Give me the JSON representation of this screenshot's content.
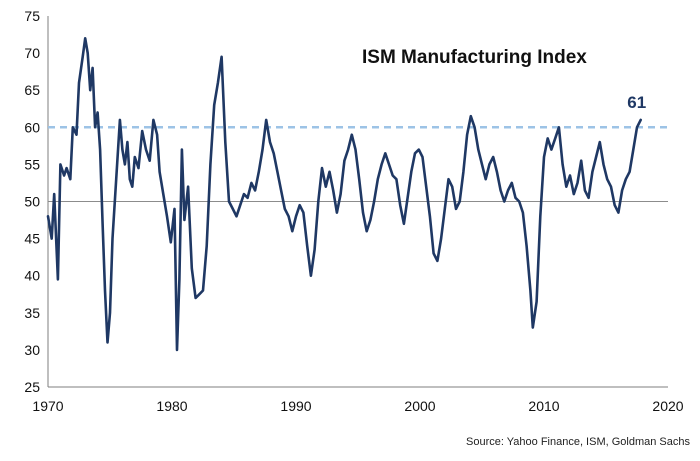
{
  "chart_data": {
    "type": "line",
    "title": "ISM Manufacturing Index",
    "source": "Source: Yahoo Finance, ISM, Goldman Sachs",
    "end_label": "61",
    "xlim": [
      1970,
      2020
    ],
    "ylim": [
      25,
      75
    ],
    "x_ticks": [
      1970,
      1980,
      1990,
      2000,
      2010,
      2020
    ],
    "y_ticks": [
      25,
      30,
      35,
      40,
      45,
      50,
      55,
      60,
      65,
      70,
      75
    ],
    "reference_lines": [
      {
        "y": 60,
        "style": "dashed",
        "color": "#9dc3e6"
      },
      {
        "y": 50,
        "style": "solid",
        "color": "#8c8c8c"
      }
    ],
    "line_color": "#1f3864",
    "grid": false,
    "series": [
      {
        "x": [
          1970.0,
          1970.3,
          1970.5,
          1970.8,
          1971.0,
          1971.3,
          1971.5,
          1971.8,
          1972.0,
          1972.3,
          1972.5,
          1972.8,
          1973.0,
          1973.2,
          1973.4,
          1973.6,
          1973.8,
          1974.0,
          1974.2,
          1974.4,
          1974.6,
          1974.8,
          1975.0,
          1975.2,
          1975.5,
          1975.8,
          1976.0,
          1976.2,
          1976.4,
          1976.6,
          1976.8,
          1977.0,
          1977.3,
          1977.6,
          1977.9,
          1978.2,
          1978.5,
          1978.8,
          1979.0,
          1979.3,
          1979.6,
          1979.9,
          1980.2,
          1980.4,
          1980.6,
          1980.8,
          1981.0,
          1981.3,
          1981.6,
          1981.9,
          1982.2,
          1982.5,
          1982.8,
          1983.1,
          1983.4,
          1983.7,
          1984.0,
          1984.3,
          1984.6,
          1984.9,
          1985.2,
          1985.5,
          1985.8,
          1986.1,
          1986.4,
          1986.7,
          1987.0,
          1987.3,
          1987.6,
          1987.9,
          1988.2,
          1988.5,
          1988.8,
          1989.1,
          1989.4,
          1989.7,
          1990.0,
          1990.3,
          1990.6,
          1990.9,
          1991.2,
          1991.5,
          1991.8,
          1992.1,
          1992.4,
          1992.7,
          1993.0,
          1993.3,
          1993.6,
          1993.9,
          1994.2,
          1994.5,
          1994.8,
          1995.1,
          1995.4,
          1995.7,
          1996.0,
          1996.3,
          1996.6,
          1996.9,
          1997.2,
          1997.5,
          1997.8,
          1998.1,
          1998.4,
          1998.7,
          1999.0,
          1999.3,
          1999.6,
          1999.9,
          2000.2,
          2000.5,
          2000.8,
          2001.1,
          2001.4,
          2001.7,
          2002.0,
          2002.3,
          2002.6,
          2002.9,
          2003.2,
          2003.5,
          2003.8,
          2004.1,
          2004.4,
          2004.7,
          2005.0,
          2005.3,
          2005.6,
          2005.9,
          2006.2,
          2006.5,
          2006.8,
          2007.1,
          2007.4,
          2007.7,
          2008.0,
          2008.3,
          2008.6,
          2008.9,
          2009.1,
          2009.4,
          2009.7,
          2010.0,
          2010.3,
          2010.6,
          2010.9,
          2011.2,
          2011.5,
          2011.8,
          2012.1,
          2012.4,
          2012.7,
          2013.0,
          2013.3,
          2013.6,
          2013.9,
          2014.2,
          2014.5,
          2014.8,
          2015.1,
          2015.4,
          2015.7,
          2016.0,
          2016.3,
          2016.6,
          2016.9,
          2017.2,
          2017.5,
          2017.8
        ],
        "y": [
          48.0,
          45.0,
          51.0,
          39.5,
          55.0,
          53.5,
          54.5,
          53.0,
          60.0,
          59.0,
          66.0,
          69.5,
          72.0,
          70.0,
          65.0,
          68.0,
          60.0,
          62.0,
          57.0,
          47.0,
          38.0,
          31.0,
          35.0,
          45.0,
          53.0,
          61.0,
          57.0,
          55.0,
          58.0,
          53.0,
          52.0,
          56.0,
          54.5,
          59.5,
          57.0,
          55.5,
          61.0,
          59.0,
          54.0,
          51.0,
          48.0,
          44.5,
          49.0,
          30.0,
          39.5,
          57.0,
          47.5,
          52.0,
          41.0,
          37.0,
          37.5,
          38.0,
          44.0,
          55.0,
          63.0,
          66.0,
          69.5,
          58.0,
          50.0,
          49.0,
          48.0,
          49.5,
          51.0,
          50.5,
          52.5,
          51.5,
          54.0,
          57.0,
          61.0,
          58.0,
          56.5,
          54.0,
          51.5,
          49.0,
          48.0,
          46.0,
          48.0,
          49.5,
          48.5,
          44.0,
          40.0,
          43.5,
          50.0,
          54.5,
          52.0,
          54.0,
          51.5,
          48.5,
          51.0,
          55.5,
          57.0,
          59.0,
          57.0,
          53.0,
          48.5,
          46.0,
          47.5,
          50.0,
          53.0,
          55.0,
          56.5,
          55.0,
          53.5,
          53.0,
          49.5,
          47.0,
          50.5,
          54.0,
          56.5,
          57.0,
          56.0,
          52.0,
          48.0,
          43.0,
          42.0,
          45.0,
          49.0,
          53.0,
          52.0,
          49.0,
          50.0,
          54.0,
          59.0,
          61.5,
          60.0,
          57.0,
          55.0,
          53.0,
          55.0,
          56.0,
          54.0,
          51.5,
          50.0,
          51.5,
          52.5,
          50.5,
          50.0,
          48.5,
          44.0,
          38.0,
          33.0,
          36.5,
          48.0,
          56.0,
          58.5,
          57.0,
          58.5,
          60.0,
          55.0,
          52.0,
          53.5,
          51.0,
          52.5,
          55.5,
          51.5,
          50.5,
          54.0,
          56.0,
          58.0,
          55.0,
          53.0,
          52.0,
          49.5,
          48.5,
          51.5,
          53.0,
          54.0,
          57.0,
          60.0,
          61.0
        ]
      }
    ]
  }
}
